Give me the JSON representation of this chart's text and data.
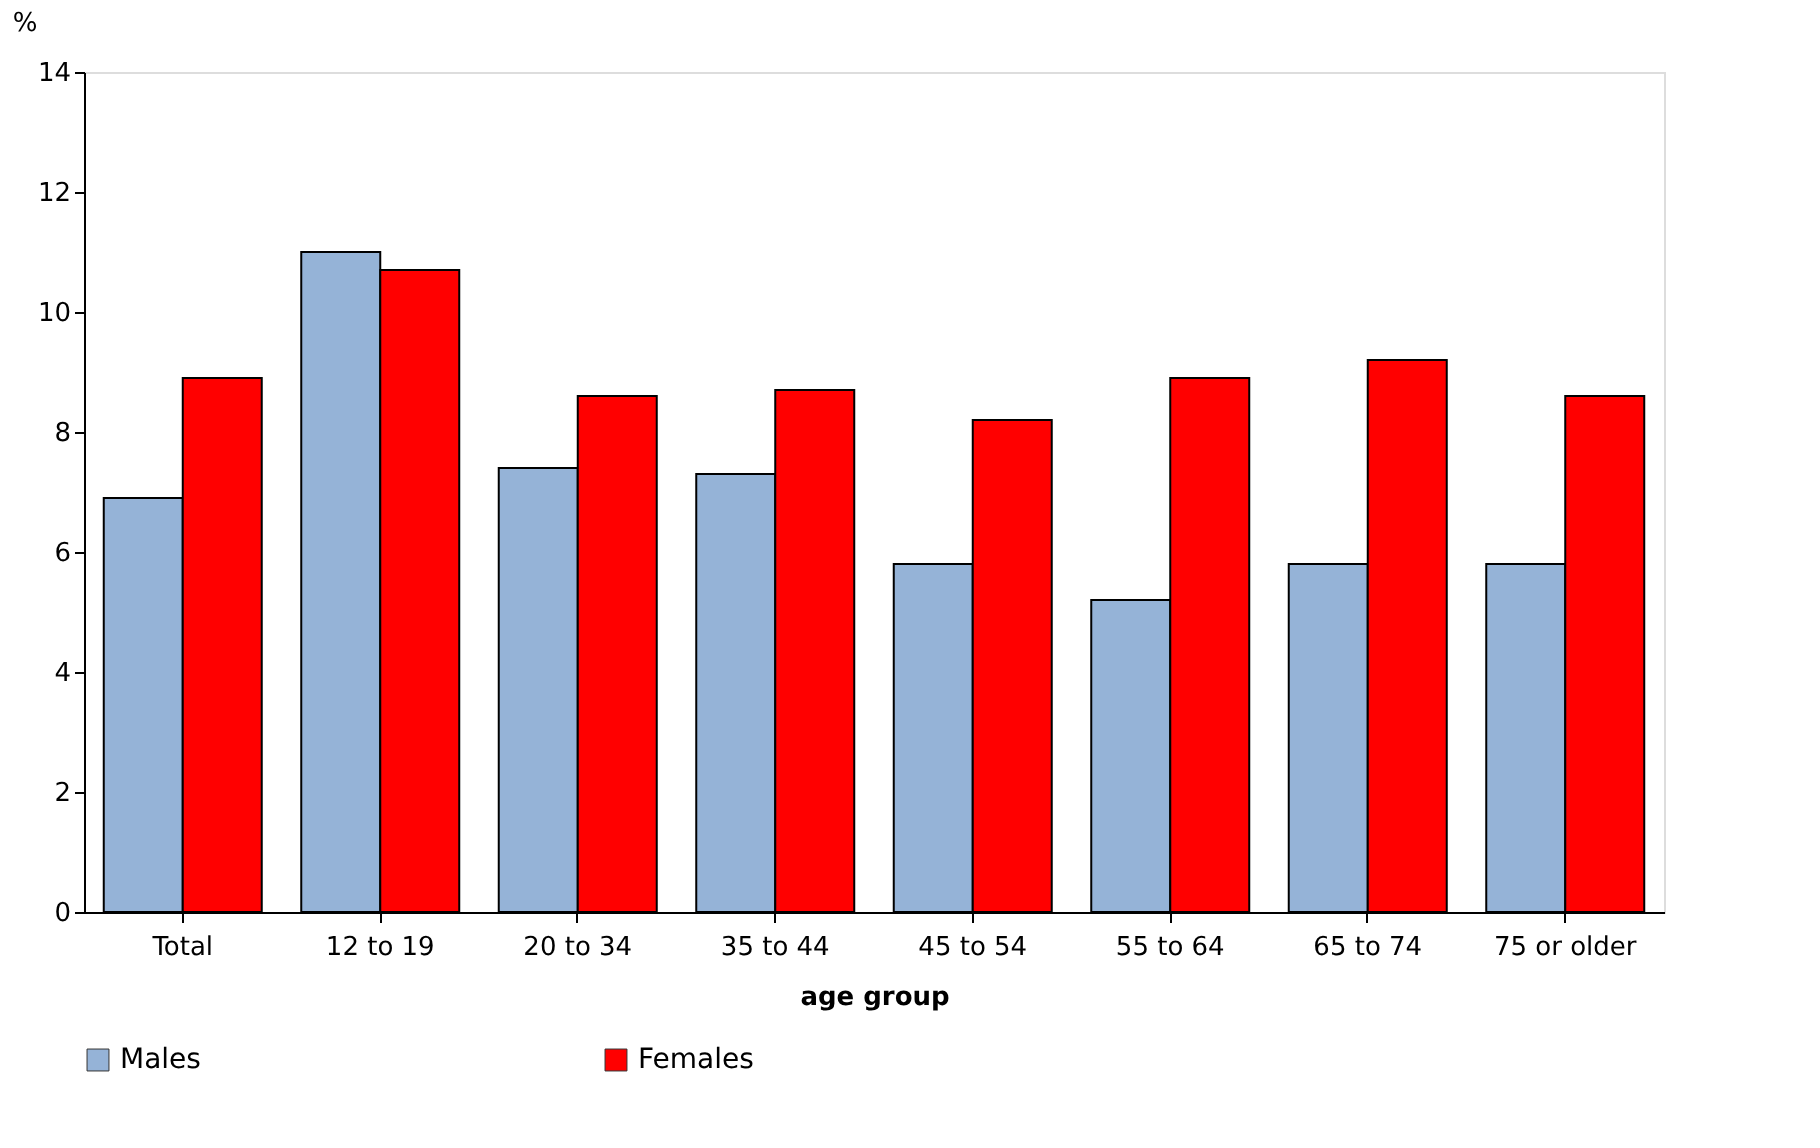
{
  "chart_data": {
    "type": "bar",
    "xlabel": "age group",
    "ylabel": "%",
    "categories": [
      "Total",
      "12 to 19",
      "20 to 34",
      "35 to 44",
      "45 to 54",
      "55 to 64",
      "65 to 74",
      "75 or older"
    ],
    "series": [
      {
        "name": "Males",
        "color": "#95b3d7",
        "values": [
          6.9,
          11.0,
          7.4,
          7.3,
          5.8,
          5.2,
          5.8,
          5.8
        ]
      },
      {
        "name": "Females",
        "color": "#ff0000",
        "values": [
          8.9,
          10.7,
          8.6,
          8.7,
          8.2,
          8.9,
          9.2,
          8.6
        ]
      }
    ],
    "ylim": [
      0,
      14
    ],
    "yticks": [
      0,
      2,
      4,
      6,
      8,
      10,
      12,
      14
    ],
    "grid": false,
    "legend": "bottom"
  }
}
